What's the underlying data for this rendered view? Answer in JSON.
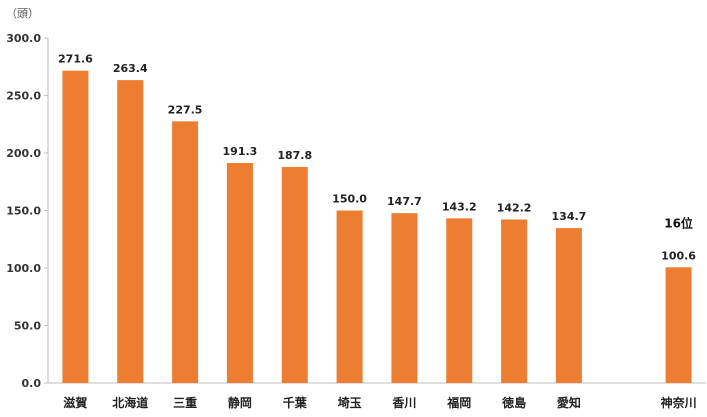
{
  "chart_data": {
    "type": "bar",
    "unit_label": "（頭）",
    "categories": [
      "滋賀",
      "北海道",
      "三重",
      "静岡",
      "千葉",
      "埼玉",
      "香川",
      "福岡",
      "徳島",
      "愛知",
      "",
      "神奈川"
    ],
    "values": [
      271.6,
      263.4,
      227.5,
      191.3,
      187.8,
      150.0,
      147.7,
      143.2,
      142.2,
      134.7,
      null,
      100.6
    ],
    "data_labels": [
      "271.6",
      "263.4",
      "227.5",
      "191.3",
      "187.8",
      "150.0",
      "147.7",
      "143.2",
      "142.2",
      "134.7",
      "",
      "100.6"
    ],
    "annotation": {
      "category": "神奈川",
      "text": "16位"
    },
    "ylim": [
      0,
      300
    ],
    "yticks": [
      "0.0",
      "50.0",
      "100.0",
      "150.0",
      "200.0",
      "250.0",
      "300.0"
    ],
    "bar_color": "#ED7D31",
    "grid": false,
    "legend": "none"
  }
}
